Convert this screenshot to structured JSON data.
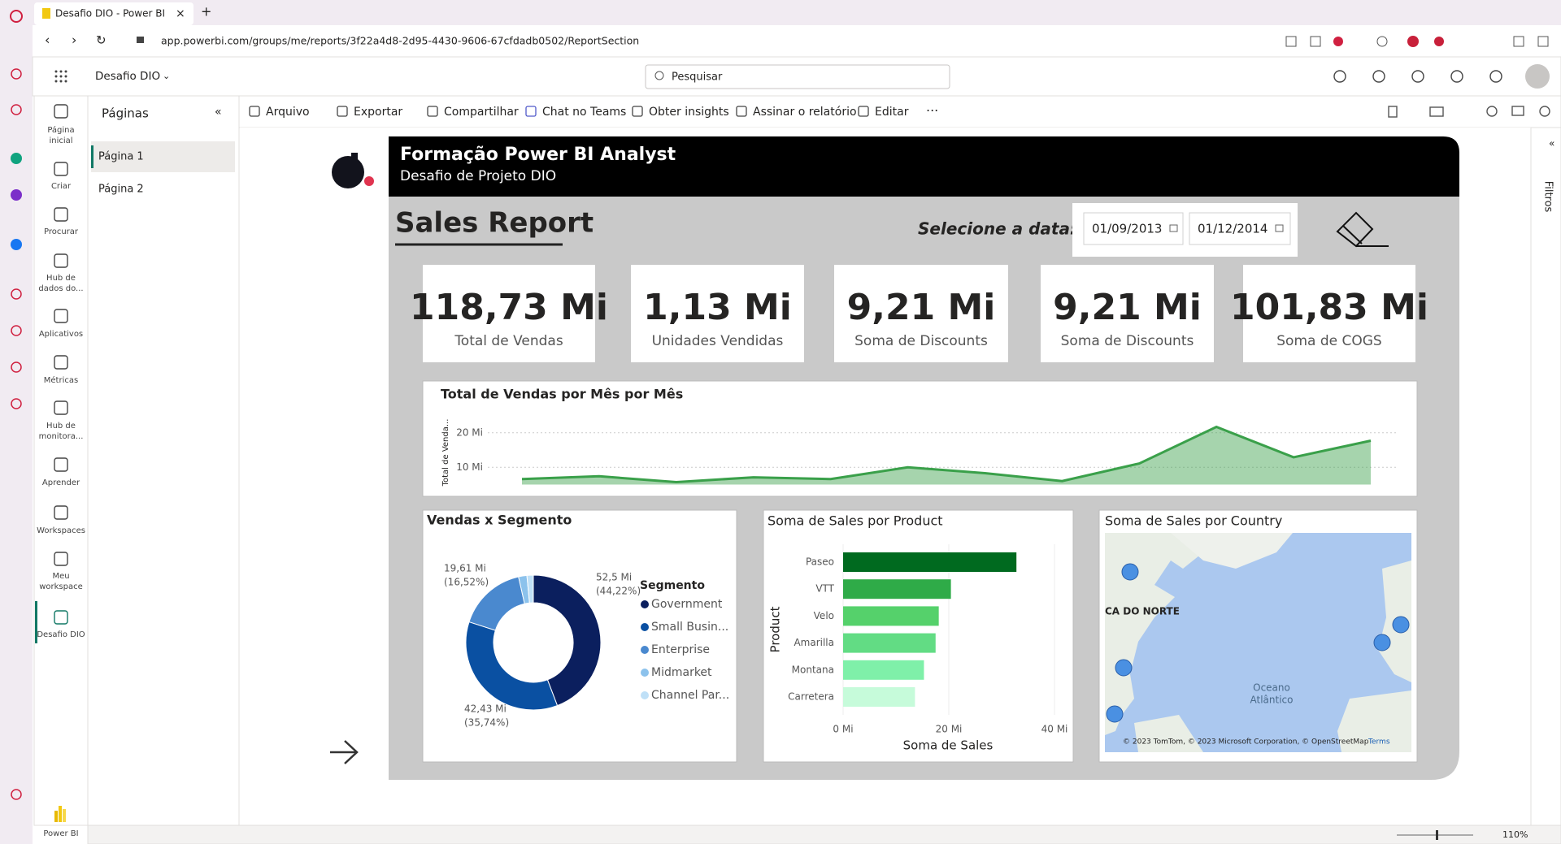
{
  "browser": {
    "tab_title": "Desafio DIO - Power BI",
    "url": "app.powerbi.com/groups/me/reports/3f22a4d8-2d95-4430-9606-67cfdadb0502/ReportSection",
    "zoom": "110%"
  },
  "app": {
    "workspace": "Desafio DIO",
    "search": "Pesquisar",
    "filters": "Filtros",
    "product": "Power BI"
  },
  "nav": [
    [
      "Página",
      "inicial"
    ],
    [
      "Criar"
    ],
    [
      "Procurar"
    ],
    [
      "Hub de",
      "dados do..."
    ],
    [
      "Aplicativos"
    ],
    [
      "Métricas"
    ],
    [
      "Hub de",
      "monitora..."
    ],
    [
      "Aprender"
    ],
    [
      "Workspaces"
    ],
    [
      "Meu",
      "workspace"
    ],
    [
      "Desafio DIO"
    ]
  ],
  "pages": {
    "title": "Páginas",
    "items": [
      "Página 1",
      "Página 2"
    ]
  },
  "toolbar": [
    "Arquivo",
    "Exportar",
    "Compartilhar",
    "Chat no Teams",
    "Obter insights",
    "Assinar o relatório",
    "Editar"
  ],
  "report": {
    "header_title": "Formação Power BI Analyst",
    "header_subtitle": "Desafio de Projeto DIO",
    "title": "Sales Report",
    "date_prompt": "Selecione a data:",
    "date_start": "01/09/2013",
    "date_end": "01/12/2014",
    "kpis": [
      {
        "value": "118,73 Mi",
        "label": "Total de Vendas"
      },
      {
        "value": "1,13 Mi",
        "label": "Unidades Vendidas"
      },
      {
        "value": "9,21 Mi",
        "label": "Soma de Discounts"
      },
      {
        "value": "9,21 Mi",
        "label": "Soma de Discounts"
      },
      {
        "value": "101,83 Mi",
        "label": "Soma de COGS"
      }
    ],
    "map": {
      "title": "Soma de Sales por Country",
      "region_label": "CA DO NORTE",
      "ocean": [
        "Oceano",
        "Atlântico"
      ],
      "attribution": "© 2023 TomTom, © 2023 Microsoft Corporation, © OpenStreetMap",
      "terms": "Terms"
    }
  },
  "chart_data": [
    {
      "type": "area",
      "title": "Total de Vendas por Mês por Mês",
      "y_label": "Total de Venda...",
      "color": "#3aa04a",
      "categories": [
        null,
        null,
        null,
        null,
        null,
        null,
        null,
        null,
        null,
        null,
        null,
        null
      ],
      "values": [
        6.6,
        7.4,
        5.7,
        7.1,
        6.6,
        10,
        8.3,
        6.0,
        11.1,
        21.7,
        12.9,
        17.7
      ],
      "ylim": [
        5,
        23
      ],
      "yticks": [
        {
          "value": 10,
          "label": "10 Mi"
        },
        {
          "value": 20,
          "label": "20 Mi"
        }
      ],
      "grid": true
    },
    {
      "type": "donut",
      "title": "Vendas x Segmento",
      "legend_title": "Segmento",
      "categories": [
        "Government",
        "Small Busin...",
        "Enterprise",
        "Midmarket",
        "Channel Par..."
      ],
      "values": [
        52.5,
        42.43,
        19.61,
        2.38,
        1.81
      ],
      "value_labels": [
        "52,5 Mi",
        "42,43 Mi",
        "19,61 Mi",
        null,
        null
      ],
      "percent_labels": [
        "(44,22%)",
        "(35,74%)",
        "(16,52%)",
        null,
        null
      ],
      "colors": [
        "#0b1f5e",
        "#0a50a2",
        "#4a89cf",
        "#8cc2ec",
        "#bfe0f7"
      ]
    },
    {
      "type": "hbar",
      "title": "Soma de Sales por Product",
      "x_label": "Soma de Sales",
      "y_label": "Product",
      "categories": [
        "Paseo",
        "VTT",
        "Velo",
        "Amarilla",
        "Montana",
        "Carretera"
      ],
      "values": [
        32.8,
        20.4,
        18.1,
        17.5,
        15.3,
        13.6
      ],
      "colors": [
        "#006a1f",
        "#2fab48",
        "#55d16b",
        "#62dc84",
        "#7ff0a9",
        "#c6fbda"
      ],
      "xlim": [
        0,
        42
      ],
      "xticks": [
        {
          "value": 0,
          "label": "0 Mi"
        },
        {
          "value": 20,
          "label": "20 Mi"
        },
        {
          "value": 40,
          "label": "40 Mi"
        }
      ]
    }
  ]
}
